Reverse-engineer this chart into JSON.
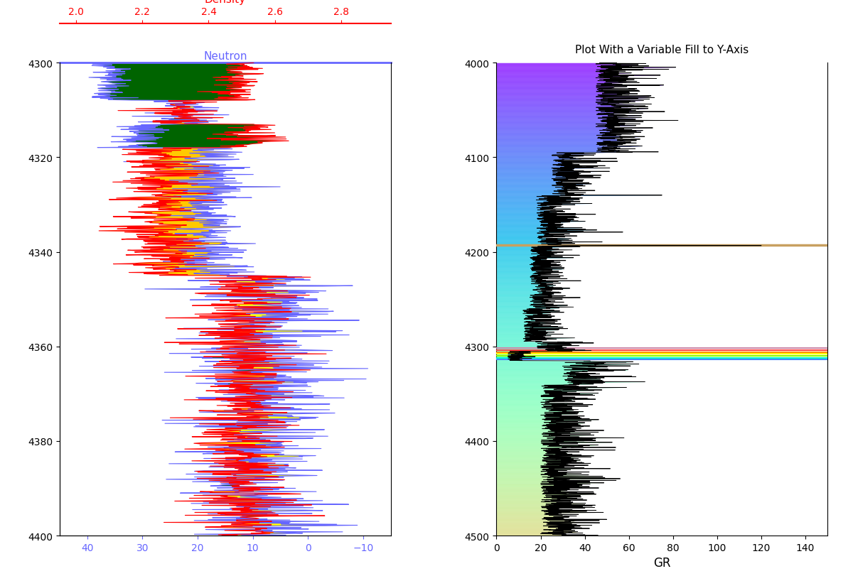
{
  "left_plot": {
    "ylim": [
      4400,
      4300
    ],
    "neutron_xlim": [
      45,
      -15
    ],
    "density_xlim": [
      1.95,
      2.95
    ],
    "neutron_label": "Neutron",
    "density_label": "Density",
    "neutron_ticks": [
      40,
      30,
      20,
      10,
      0,
      -10
    ],
    "density_ticks": [
      2.0,
      2.2,
      2.4,
      2.6,
      2.8
    ],
    "yticks": [
      4300,
      4320,
      4340,
      4360,
      4380,
      4400
    ],
    "neutron_color": "#6666ff",
    "density_color": "#ff0000",
    "fill_gas_color": "#ffff00",
    "fill_oil_color": "#ffa500",
    "fill_water_color": "#006400"
  },
  "right_plot": {
    "ylim": [
      4500,
      4000
    ],
    "xlim": [
      0,
      150
    ],
    "xlabel": "GR",
    "title": "Plot With a Variable Fill to Y-Axis",
    "yticks": [
      4000,
      4100,
      4200,
      4300,
      4400,
      4500
    ],
    "xticks": [
      0,
      20,
      40,
      60,
      80,
      100,
      120,
      140
    ],
    "line_color": "#000000",
    "cmap": "rainbow"
  }
}
